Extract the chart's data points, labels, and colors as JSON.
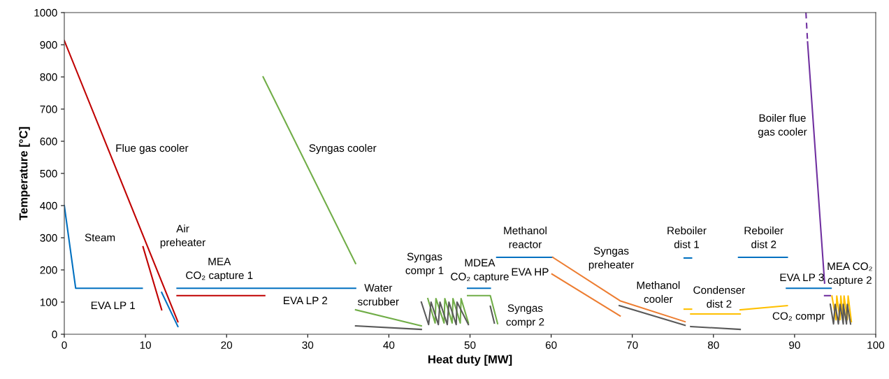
{
  "chart_data": {
    "type": "line",
    "xlabel": "Heat duty [MW]",
    "ylabel": "Temperature [°C]",
    "xlim": [
      0,
      100
    ],
    "ylim": [
      0,
      1000
    ],
    "xticks": [
      0,
      10,
      20,
      30,
      40,
      50,
      60,
      70,
      80,
      90,
      100
    ],
    "yticks": [
      0,
      100,
      200,
      300,
      400,
      500,
      600,
      700,
      800,
      900,
      1000
    ],
    "grid": false,
    "marker": "none",
    "line_style": "solid",
    "series": [
      {
        "color": "#0070c0",
        "x": [
          0,
          1.4,
          9.6
        ],
        "values": [
          400,
          143,
          143
        ]
      },
      {
        "color": "#0070c0",
        "x": [
          12.0,
          14.0
        ],
        "values": [
          130,
          24
        ]
      },
      {
        "color": "#0070c0",
        "x": [
          13.9,
          35.9
        ],
        "values": [
          143,
          143
        ]
      },
      {
        "color": "#0070c0",
        "x": [
          49.7,
          52.5
        ],
        "values": [
          143,
          143
        ]
      },
      {
        "color": "#0070c0",
        "x": [
          53.3,
          60.2
        ],
        "values": [
          239,
          239
        ]
      },
      {
        "color": "#0070c0",
        "x": [
          76.4,
          77.3
        ],
        "values": [
          237,
          237
        ]
      },
      {
        "color": "#0070c0",
        "x": [
          83.1,
          89.1
        ],
        "values": [
          239,
          239
        ]
      },
      {
        "color": "#0070c0",
        "x": [
          89.0,
          94.5
        ],
        "values": [
          143,
          143
        ]
      },
      {
        "color": "#c00000",
        "x": [
          0,
          14.0
        ],
        "values": [
          913,
          39
        ]
      },
      {
        "color": "#c00000",
        "x": [
          9.7,
          12.0
        ],
        "values": [
          272,
          76
        ]
      },
      {
        "color": "#c00000",
        "x": [
          13.9,
          24.7
        ],
        "values": [
          120,
          120
        ]
      },
      {
        "color": "#70ad47",
        "x": [
          24.5,
          35.9
        ],
        "values": [
          800,
          220
        ]
      },
      {
        "color": "#70ad47",
        "x": [
          35.9,
          44.0
        ],
        "values": [
          76,
          26
        ]
      },
      {
        "color": "#70ad47",
        "x": [
          44.8,
          45.7,
          45.8,
          46.8,
          46.9,
          47.8,
          47.9,
          48.8,
          48.9,
          49.8
        ],
        "values": [
          111,
          35,
          111,
          35,
          111,
          35,
          111,
          35,
          111,
          35
        ]
      },
      {
        "color": "#70ad47",
        "x": [
          49.7,
          52.5,
          53.4
        ],
        "values": [
          120,
          120,
          33
        ]
      },
      {
        "color": "#595959",
        "x": [
          35.9,
          44.0
        ],
        "values": [
          26,
          15
        ]
      },
      {
        "color": "#595959",
        "x": [
          44.0,
          44.9,
          45.2,
          46.1,
          46.3,
          47.2,
          47.4,
          48.3,
          48.4,
          49.8
        ],
        "values": [
          100,
          30,
          100,
          30,
          100,
          30,
          100,
          30,
          100,
          30
        ]
      },
      {
        "color": "#595959",
        "x": [
          52.5,
          53.0
        ],
        "values": [
          87,
          35
        ]
      },
      {
        "color": "#ed7d31",
        "x": [
          60.2,
          68.5,
          76.5
        ],
        "values": [
          239,
          104,
          39
        ]
      },
      {
        "color": "#ed7d31",
        "x": [
          60.1,
          68.5
        ],
        "values": [
          187,
          57
        ]
      },
      {
        "color": "#595959",
        "x": [
          68.4,
          76.5
        ],
        "values": [
          89,
          28
        ]
      },
      {
        "color": "#595959",
        "x": [
          77.2,
          83.3
        ],
        "values": [
          24,
          15
        ]
      },
      {
        "color": "#ffc000",
        "x": [
          76.4,
          77.3
        ],
        "values": [
          78,
          78
        ]
      },
      {
        "color": "#ffc000",
        "x": [
          77.2,
          83.3
        ],
        "values": [
          63,
          63
        ]
      },
      {
        "color": "#ffc000",
        "x": [
          83.3,
          89.1
        ],
        "values": [
          76,
          89
        ]
      },
      {
        "color": "#ffc000",
        "x": [
          94.6,
          95.1,
          95.2,
          95.6,
          95.7,
          96.0,
          96.1,
          96.5,
          96.6,
          97.0
        ],
        "values": [
          119,
          45,
          119,
          45,
          119,
          45,
          119,
          45,
          119,
          39
        ]
      },
      {
        "color": "#595959",
        "x": [
          94.4,
          94.8,
          95.0,
          95.4,
          95.6,
          96.0,
          96.0,
          96.4,
          96.5,
          96.9
        ],
        "values": [
          93,
          32,
          93,
          32,
          93,
          32,
          93,
          32,
          93,
          32
        ]
      },
      {
        "color": "#7030a0",
        "x": [
          91.4,
          91.6
        ],
        "values": [
          1000,
          909
        ],
        "line_style": "dashed"
      },
      {
        "color": "#7030a0",
        "x": [
          91.6,
          93.7
        ],
        "values": [
          909,
          159
        ]
      },
      {
        "color": "#7030a0",
        "x": [
          93.7,
          94.4
        ],
        "values": [
          120,
          120
        ]
      }
    ],
    "annotations": [
      "Flue gas cooler",
      "Syngas cooler",
      "Steam",
      "Air\npreheater",
      "MEA\nCO₂ capture 1",
      "EVA LP 1",
      "EVA LP 2",
      "Water\nscrubber",
      "Syngas\ncompr 1",
      "MDEA\nCO₂ capture",
      "Syngas\ncompr 2",
      "Methanol\nreactor",
      "EVA HP",
      "Syngas\npreheater",
      "Methanol\ncooler",
      "Reboiler\ndist 1",
      "Condenser\ndist 2",
      "Reboiler\ndist 2",
      "EVA LP 3",
      "MEA CO₂\ncapture 2",
      "Boiler flue\ngas cooler",
      "CO₂ compr"
    ]
  }
}
